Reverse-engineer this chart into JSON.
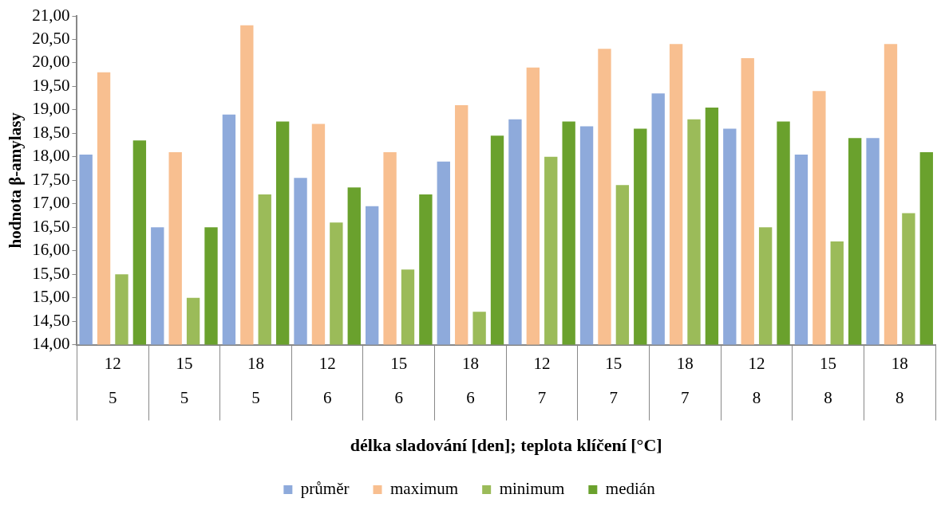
{
  "chart_data": {
    "type": "bar",
    "xlabel": "délka sladování [den]; teplota klíčení [°C]",
    "ylabel": "hodnota β-amylasy",
    "categories": [
      "12\n5",
      "15\n5",
      "18\n5",
      "12\n6",
      "15\n6",
      "18\n6",
      "12\n7",
      "15\n7",
      "18\n7",
      "12\n8",
      "15\n8",
      "18\n8"
    ],
    "series": [
      {
        "name": "průměr",
        "color": "#8eaadb",
        "values": [
          18.05,
          16.5,
          18.9,
          17.55,
          16.95,
          17.9,
          18.8,
          18.65,
          19.35,
          18.6,
          18.05,
          18.4
        ]
      },
      {
        "name": "maximum",
        "color": "#f8bf90",
        "values": [
          19.8,
          18.1,
          20.8,
          18.7,
          18.1,
          19.1,
          19.9,
          20.3,
          20.4,
          20.1,
          19.4,
          20.4
        ]
      },
      {
        "name": "minimum",
        "color": "#9bbb59",
        "values": [
          15.5,
          15.0,
          17.2,
          16.6,
          15.6,
          14.7,
          18.0,
          17.4,
          18.8,
          16.5,
          16.2,
          16.8
        ]
      },
      {
        "name": "medián",
        "color": "#6aa12d",
        "values": [
          18.35,
          16.5,
          18.75,
          17.35,
          17.2,
          18.45,
          18.75,
          18.6,
          19.05,
          18.75,
          18.4,
          18.1
        ]
      }
    ],
    "ylim": [
      14,
      21
    ],
    "yticks": [
      {
        "value": 14,
        "label": "14,00"
      },
      {
        "value": 14.5,
        "label": "14,50"
      },
      {
        "value": 15,
        "label": "15,00"
      },
      {
        "value": 15.5,
        "label": "15,50"
      },
      {
        "value": 16,
        "label": "16,00"
      },
      {
        "value": 16.5,
        "label": "16,50"
      },
      {
        "value": 17,
        "label": "17,00"
      },
      {
        "value": 17.5,
        "label": "17,50"
      },
      {
        "value": 18,
        "label": "18,00"
      },
      {
        "value": 18.5,
        "label": "18,50"
      },
      {
        "value": 19,
        "label": "19,00"
      },
      {
        "value": 19.5,
        "label": "19,50"
      },
      {
        "value": 20,
        "label": "20,00"
      },
      {
        "value": 20.5,
        "label": "20,50"
      },
      {
        "value": 21,
        "label": "21,00"
      }
    ],
    "grid": false,
    "legend": "bottom"
  }
}
